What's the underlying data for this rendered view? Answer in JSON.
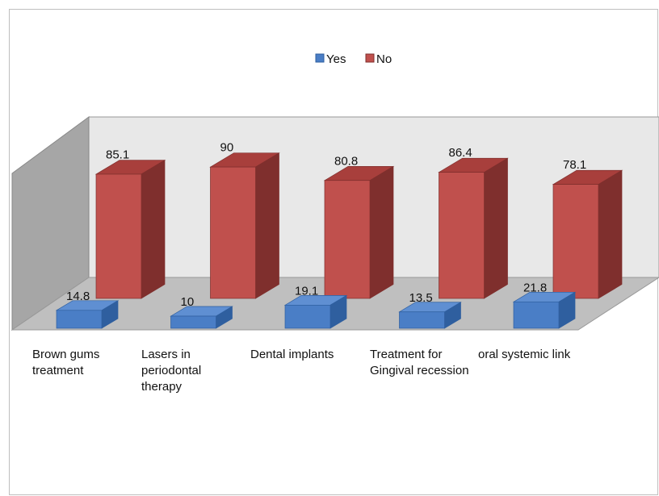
{
  "chart_data": {
    "type": "bar",
    "categories": [
      [
        "Brown gums",
        "treatment"
      ],
      [
        "Lasers in",
        "periodontal",
        "therapy"
      ],
      [
        "Dental implants"
      ],
      [
        "Treatment for",
        "Gingival recession"
      ],
      [
        "oral systemic link"
      ]
    ],
    "series": [
      {
        "name": "Yes",
        "values": [
          14.8,
          10,
          19.1,
          13.5,
          21.8
        ]
      },
      {
        "name": "No",
        "values": [
          85.1,
          90,
          80.8,
          86.4,
          78.1
        ]
      }
    ],
    "data_labels": {
      "Yes": [
        "14.8",
        "10",
        "19.1",
        "13.5",
        "21.8"
      ],
      "No": [
        "85.1",
        "90",
        "80.8",
        "86.4",
        "78.1"
      ]
    },
    "legend": "top-center",
    "grid": false,
    "three_d": true,
    "colors": {
      "Yes": {
        "front": "#4a7ec6",
        "top": "#5f8fd2",
        "side": "#2f5f9f"
      },
      "No": {
        "front": "#c0504d",
        "top": "#a83f3c",
        "side": "#7f2f2d"
      },
      "back_wall": "#e8e8e8",
      "side_wall": "#a6a6a6",
      "floor": "#bfbfbf"
    }
  }
}
